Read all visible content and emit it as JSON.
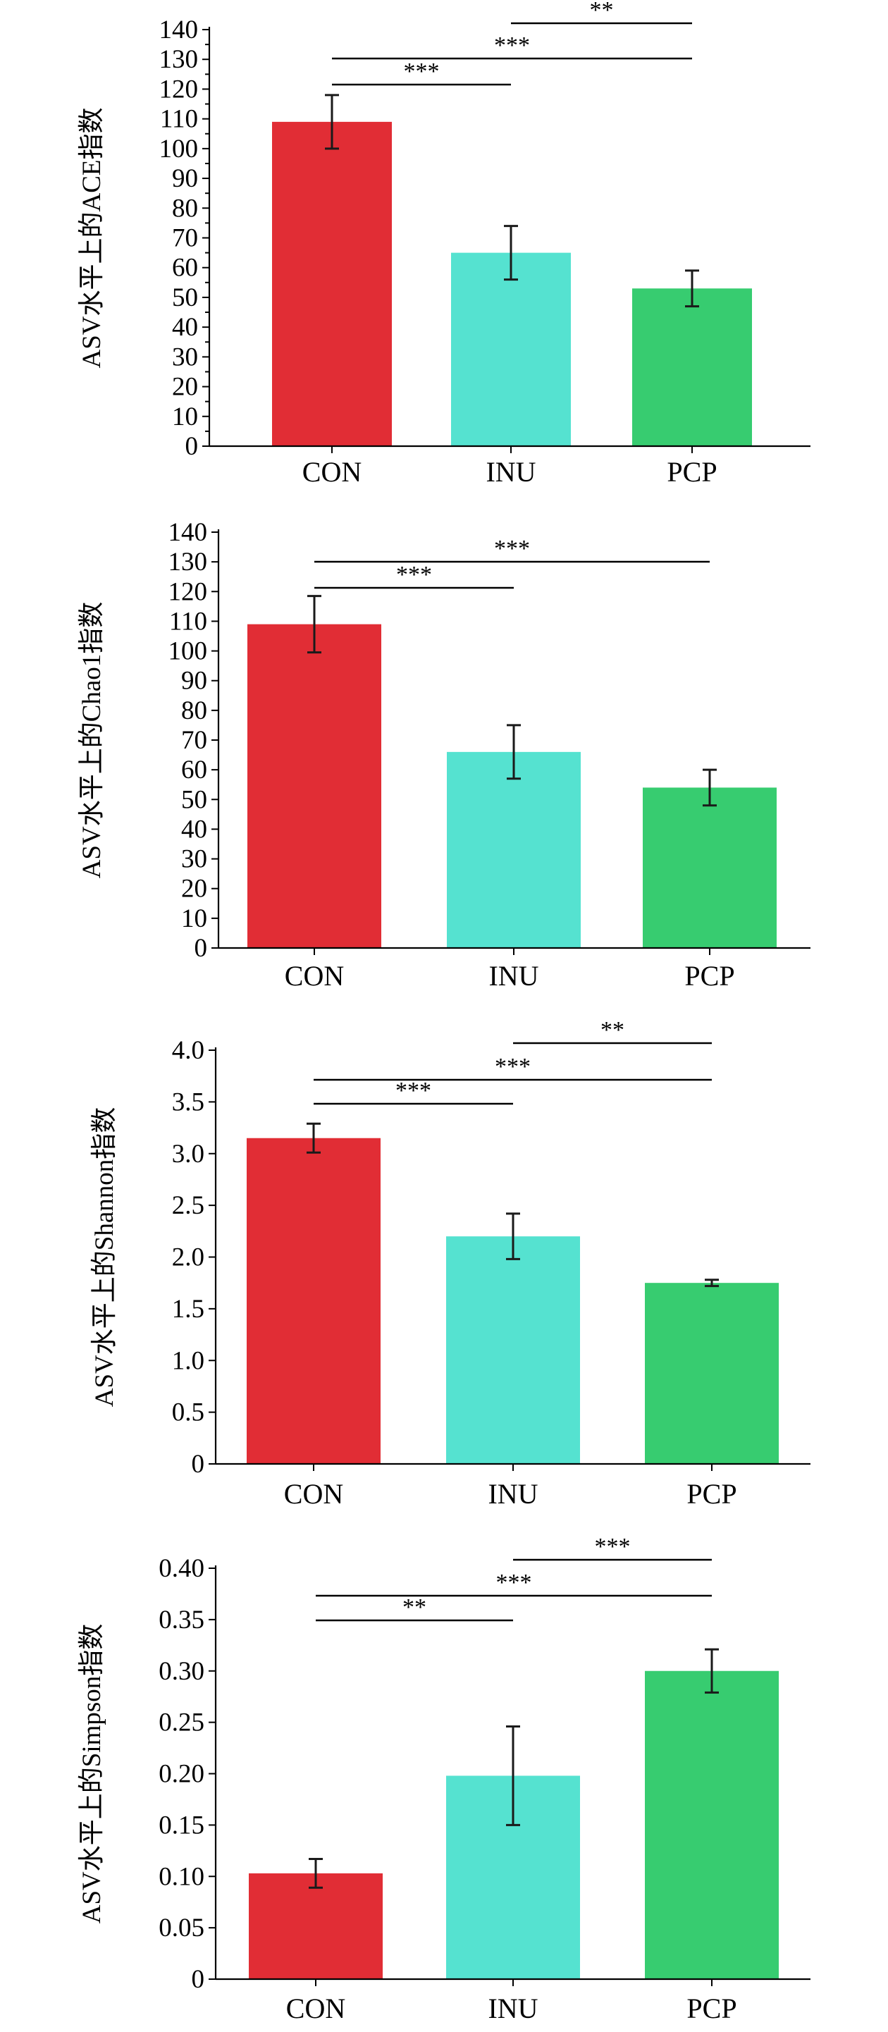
{
  "chart_data": [
    {
      "type": "bar",
      "ylabel": "ASV水平上的ACE指数",
      "categories": [
        "CON",
        "INU",
        "PCP"
      ],
      "values": [
        109,
        65,
        53
      ],
      "errors": [
        9,
        9,
        6
      ],
      "colors": [
        "#e12d35",
        "#55e2d0",
        "#37cc70"
      ],
      "ylim": [
        0,
        140
      ],
      "yticks": [
        "0",
        "10",
        "20",
        "30",
        "40",
        "50",
        "60",
        "70",
        "80",
        "90",
        "100",
        "110",
        "120",
        "130",
        "140"
      ],
      "significance": [
        {
          "from": "CON",
          "to": "INU",
          "label": "***"
        },
        {
          "from": "CON",
          "to": "PCP",
          "label": "***"
        },
        {
          "from": "INU",
          "to": "PCP",
          "label": "**"
        }
      ]
    },
    {
      "type": "bar",
      "ylabel": "ASV水平上的Chao1指数",
      "categories": [
        "CON",
        "INU",
        "PCP"
      ],
      "values": [
        109,
        66,
        54
      ],
      "errors": [
        9.5,
        9,
        6
      ],
      "colors": [
        "#e12d35",
        "#55e2d0",
        "#37cc70"
      ],
      "ylim": [
        0,
        140
      ],
      "yticks": [
        "0",
        "10",
        "20",
        "30",
        "40",
        "50",
        "60",
        "70",
        "80",
        "90",
        "100",
        "110",
        "120",
        "130",
        "140"
      ],
      "significance": [
        {
          "from": "CON",
          "to": "INU",
          "label": "***"
        },
        {
          "from": "CON",
          "to": "PCP",
          "label": "***"
        }
      ]
    },
    {
      "type": "bar",
      "ylabel": "ASV水平上的Shannon指数",
      "categories": [
        "CON",
        "INU",
        "PCP"
      ],
      "values": [
        3.15,
        2.2,
        1.75
      ],
      "errors": [
        0.14,
        0.22,
        0.03
      ],
      "colors": [
        "#e12d35",
        "#55e2d0",
        "#37cc70"
      ],
      "ylim": [
        0,
        4.0
      ],
      "yticks": [
        "0",
        "0.5",
        "1.0",
        "1.5",
        "2.0",
        "2.5",
        "3.0",
        "3.5",
        "4.0"
      ],
      "significance": [
        {
          "from": "CON",
          "to": "INU",
          "label": "***"
        },
        {
          "from": "CON",
          "to": "PCP",
          "label": "***"
        },
        {
          "from": "INU",
          "to": "PCP",
          "label": "**"
        }
      ]
    },
    {
      "type": "bar",
      "ylabel": "ASV水平上的Simpson指数",
      "categories": [
        "CON",
        "INU",
        "PCP"
      ],
      "values": [
        0.103,
        0.198,
        0.3
      ],
      "errors": [
        0.014,
        0.048,
        0.021
      ],
      "colors": [
        "#e12d35",
        "#55e2d0",
        "#37cc70"
      ],
      "ylim": [
        0,
        0.4
      ],
      "yticks": [
        "0",
        "0.05",
        "0.10",
        "0.15",
        "0.20",
        "0.25",
        "0.30",
        "0.35",
        "0.40"
      ],
      "significance": [
        {
          "from": "CON",
          "to": "INU",
          "label": "**"
        },
        {
          "from": "CON",
          "to": "PCP",
          "label": "***"
        },
        {
          "from": "INU",
          "to": "PCP",
          "label": "***"
        }
      ]
    }
  ]
}
